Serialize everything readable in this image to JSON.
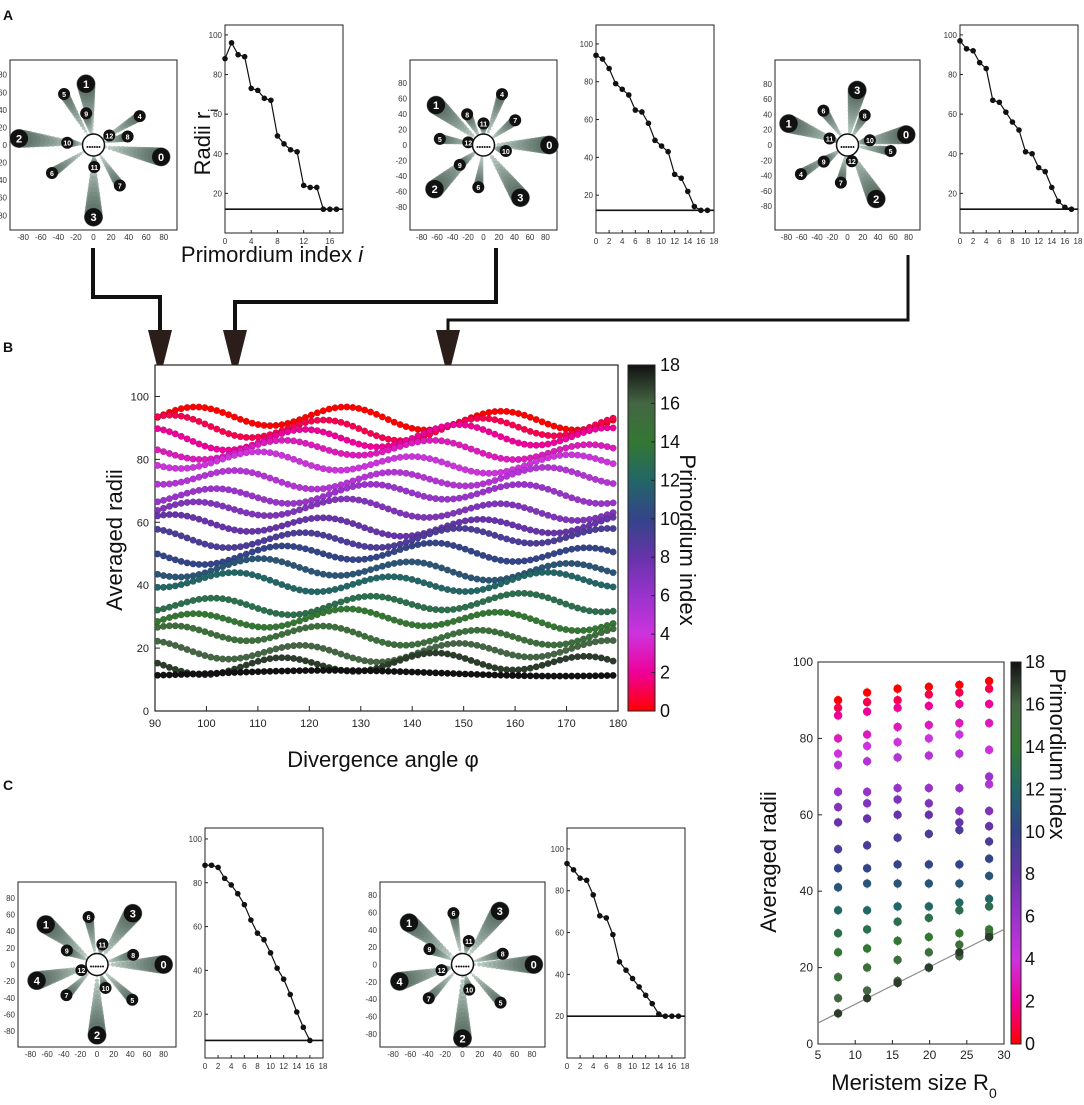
{
  "panels": {
    "a": "A",
    "b": "B",
    "c": "C"
  },
  "panel_a": {
    "radii_ylabel": "Radii r",
    "radii_ylabel_sub": "i",
    "radii_xlabel_prefix": "Primordium index ",
    "radii_xlabel_var": "i"
  },
  "chart_data": [
    {
      "id": "A1",
      "type": "line",
      "x": [
        0,
        1,
        2,
        3,
        4,
        5,
        6,
        7,
        8,
        9,
        10,
        11,
        12,
        13,
        14,
        15,
        16,
        17
      ],
      "y": [
        88,
        96,
        90,
        89,
        73,
        72,
        68,
        67,
        49,
        45,
        42,
        41,
        24,
        23,
        23,
        12,
        12,
        12
      ],
      "threshold": 12,
      "ylim": [
        0,
        105
      ],
      "xlim": [
        0,
        18
      ],
      "yticks": [
        20,
        40,
        60,
        80,
        100
      ],
      "xticks": [
        0,
        4,
        8,
        12,
        16
      ],
      "spiral": {
        "labels": [
          {
            "t": "0",
            "a": -10,
            "r": 78,
            "big": true
          },
          {
            "t": "1",
            "a": 97,
            "r": 70,
            "big": true
          },
          {
            "t": "2",
            "a": 175,
            "r": 85,
            "big": true
          },
          {
            "t": "3",
            "a": -90,
            "r": 82,
            "big": true
          },
          {
            "t": "4",
            "a": 32,
            "r": 62,
            "big": false
          },
          {
            "t": "5",
            "a": 120,
            "r": 67,
            "big": false
          },
          {
            "t": "6",
            "a": -146,
            "r": 57,
            "big": false
          },
          {
            "t": "7",
            "a": -57,
            "r": 55,
            "big": false
          },
          {
            "t": "8",
            "a": 14,
            "r": 40,
            "big": false
          },
          {
            "t": "9",
            "a": 103,
            "r": 37,
            "big": false
          },
          {
            "t": "10",
            "a": 175,
            "r": 30,
            "big": false
          },
          {
            "t": "11",
            "a": -88,
            "r": 25,
            "big": false
          },
          {
            "t": "12",
            "a": 31,
            "r": 21,
            "big": false
          }
        ],
        "ticks": [
          -80,
          -60,
          -40,
          -20,
          0,
          20,
          40,
          60,
          80
        ]
      }
    },
    {
      "id": "A2",
      "type": "line",
      "x": [
        0,
        1,
        2,
        3,
        4,
        5,
        6,
        7,
        8,
        9,
        10,
        11,
        12,
        13,
        14,
        15,
        16,
        17
      ],
      "y": [
        94,
        92,
        87,
        79,
        76,
        73,
        65,
        64,
        58,
        49,
        46,
        43,
        31,
        29,
        22,
        14,
        12,
        12
      ],
      "threshold": 12,
      "ylim": [
        0,
        110
      ],
      "xlim": [
        0,
        18
      ],
      "yticks": [
        20,
        40,
        60,
        80,
        100
      ],
      "xticks": [
        0,
        2,
        4,
        6,
        8,
        10,
        12,
        14,
        16,
        18
      ],
      "spiral": {
        "labels": [
          {
            "t": "0",
            "a": 0,
            "r": 85,
            "big": true
          },
          {
            "t": "1",
            "a": 140,
            "r": 80,
            "big": true
          },
          {
            "t": "2",
            "a": -138,
            "r": 85,
            "big": true
          },
          {
            "t": "3",
            "a": -55,
            "r": 83,
            "big": true
          },
          {
            "t": "4",
            "a": 70,
            "r": 70,
            "big": false
          },
          {
            "t": "5",
            "a": 172,
            "r": 57,
            "big": false
          },
          {
            "t": "6",
            "a": -97,
            "r": 55,
            "big": false
          },
          {
            "t": "7",
            "a": 38,
            "r": 52,
            "big": false
          },
          {
            "t": "8",
            "a": 118,
            "r": 45,
            "big": false
          },
          {
            "t": "9",
            "a": -140,
            "r": 40,
            "big": false
          },
          {
            "t": "10",
            "a": -15,
            "r": 30,
            "big": false
          },
          {
            "t": "11",
            "a": 90,
            "r": 28,
            "big": false
          },
          {
            "t": "12",
            "a": 170,
            "r": 20,
            "big": false
          }
        ],
        "ticks": [
          -80,
          -60,
          -40,
          -20,
          0,
          20,
          40,
          60,
          80
        ]
      }
    },
    {
      "id": "A3",
      "type": "line",
      "x": [
        0,
        1,
        2,
        3,
        4,
        5,
        6,
        7,
        8,
        9,
        10,
        11,
        12,
        13,
        14,
        15,
        16,
        17
      ],
      "y": [
        97,
        93,
        92,
        86,
        83,
        67,
        66,
        61,
        56,
        52,
        41,
        40,
        33,
        31,
        23,
        16,
        13,
        12
      ],
      "threshold": 12,
      "ylim": [
        0,
        105
      ],
      "xlim": [
        0,
        18
      ],
      "yticks": [
        20,
        40,
        60,
        80,
        100
      ],
      "xticks": [
        0,
        2,
        4,
        6,
        8,
        10,
        12,
        14,
        16,
        18
      ],
      "spiral": {
        "labels": [
          {
            "t": "0",
            "a": 10,
            "r": 78,
            "big": true
          },
          {
            "t": "1",
            "a": 160,
            "r": 82,
            "big": true
          },
          {
            "t": "2",
            "a": -62,
            "r": 80,
            "big": true
          },
          {
            "t": "3",
            "a": 80,
            "r": 73,
            "big": true
          },
          {
            "t": "4",
            "a": -148,
            "r": 72,
            "big": false
          },
          {
            "t": "5",
            "a": -8,
            "r": 57,
            "big": false
          },
          {
            "t": "6",
            "a": 125,
            "r": 55,
            "big": false
          },
          {
            "t": "7",
            "a": -100,
            "r": 50,
            "big": false
          },
          {
            "t": "8",
            "a": 60,
            "r": 45,
            "big": false
          },
          {
            "t": "9",
            "a": -145,
            "r": 38,
            "big": false
          },
          {
            "t": "10",
            "a": 12,
            "r": 30,
            "big": false
          },
          {
            "t": "11",
            "a": 160,
            "r": 25,
            "big": false
          },
          {
            "t": "12",
            "a": -75,
            "r": 22,
            "big": false
          }
        ],
        "ticks": [
          -80,
          -60,
          -40,
          -20,
          0,
          20,
          40,
          60,
          80
        ]
      }
    },
    {
      "id": "B",
      "type": "scatter",
      "title": "",
      "xlabel": "Divergence angle φ",
      "ylabel": "Averaged radii",
      "xlim": [
        90,
        180
      ],
      "ylim": [
        0,
        110
      ],
      "xticks": [
        90,
        100,
        110,
        120,
        130,
        140,
        150,
        160,
        170,
        180
      ],
      "yticks": [
        0,
        20,
        40,
        60,
        80,
        100
      ],
      "colorbar": {
        "label": "Primordium index",
        "ticks": [
          0,
          2,
          4,
          6,
          8,
          10,
          12,
          14,
          16,
          18
        ],
        "range": [
          0,
          18
        ]
      },
      "arrows_at": [
        91.5,
        105.5,
        146.5
      ],
      "series": [
        {
          "index": 0,
          "base": 93
        },
        {
          "index": 1,
          "base": 90
        },
        {
          "index": 2,
          "base": 87
        },
        {
          "index": 3,
          "base": 83
        },
        {
          "index": 4,
          "base": 79
        },
        {
          "index": 5,
          "base": 74
        },
        {
          "index": 6,
          "base": 69
        },
        {
          "index": 7,
          "base": 64
        },
        {
          "index": 8,
          "base": 59
        },
        {
          "index": 9,
          "base": 55
        },
        {
          "index": 10,
          "base": 50
        },
        {
          "index": 11,
          "base": 45
        },
        {
          "index": 12,
          "base": 41
        },
        {
          "index": 13,
          "base": 34
        },
        {
          "index": 14,
          "base": 29
        },
        {
          "index": 15,
          "base": 24
        },
        {
          "index": 16,
          "base": 19
        },
        {
          "index": 17,
          "base": 15
        },
        {
          "index": 18,
          "base": 12
        }
      ]
    },
    {
      "id": "C1",
      "type": "line",
      "x": [
        0,
        1,
        2,
        3,
        4,
        5,
        6,
        7,
        8,
        9,
        10,
        11,
        12,
        13,
        14,
        15,
        16
      ],
      "y": [
        88,
        88,
        87,
        82,
        79,
        75,
        70,
        63,
        57,
        54,
        48,
        41,
        36,
        29,
        21,
        14,
        8
      ],
      "threshold": 8,
      "ylim": [
        0,
        105
      ],
      "xlim": [
        0,
        18
      ],
      "yticks": [
        20,
        40,
        60,
        80,
        100
      ],
      "xticks": [
        0,
        2,
        4,
        6,
        8,
        10,
        12,
        14,
        16,
        18
      ],
      "spiral": {
        "labels": [
          {
            "t": "0",
            "a": 0,
            "r": 80,
            "big": true
          },
          {
            "t": "1",
            "a": 142,
            "r": 78,
            "big": true
          },
          {
            "t": "2",
            "a": -90,
            "r": 85,
            "big": true
          },
          {
            "t": "3",
            "a": 55,
            "r": 75,
            "big": true
          },
          {
            "t": "4",
            "a": -165,
            "r": 75,
            "big": true
          },
          {
            "t": "5",
            "a": -45,
            "r": 60,
            "big": false
          },
          {
            "t": "6",
            "a": 100,
            "r": 58,
            "big": false
          },
          {
            "t": "7",
            "a": -135,
            "r": 52,
            "big": false
          },
          {
            "t": "8",
            "a": 15,
            "r": 45,
            "big": false
          },
          {
            "t": "9",
            "a": 155,
            "r": 40,
            "big": false
          },
          {
            "t": "10",
            "a": -70,
            "r": 30,
            "big": false
          },
          {
            "t": "11",
            "a": 75,
            "r": 25,
            "big": false
          },
          {
            "t": "12",
            "a": -160,
            "r": 20,
            "big": false
          }
        ],
        "ticks": [
          -80,
          -60,
          -40,
          -20,
          0,
          20,
          40,
          60,
          80
        ]
      }
    },
    {
      "id": "C2",
      "type": "line",
      "x": [
        0,
        1,
        2,
        3,
        4,
        5,
        6,
        7,
        8,
        9,
        10,
        11,
        12,
        13,
        14,
        15,
        16,
        17
      ],
      "y": [
        93,
        90,
        86,
        85,
        78,
        68,
        67,
        59,
        46,
        42,
        38,
        34,
        30,
        26,
        21,
        20,
        20,
        20
      ],
      "threshold": 20,
      "ylim": [
        0,
        110
      ],
      "xlim": [
        0,
        18
      ],
      "yticks": [
        20,
        40,
        60,
        80,
        100
      ],
      "xticks": [
        0,
        2,
        4,
        6,
        8,
        10,
        12,
        14,
        16,
        18
      ],
      "spiral": {
        "labels": [
          {
            "t": "0",
            "a": 0,
            "r": 82,
            "big": true
          },
          {
            "t": "1",
            "a": 142,
            "r": 78,
            "big": true
          },
          {
            "t": "2",
            "a": -90,
            "r": 85,
            "big": true
          },
          {
            "t": "3",
            "a": 55,
            "r": 75,
            "big": true
          },
          {
            "t": "4",
            "a": -165,
            "r": 75,
            "big": true
          },
          {
            "t": "5",
            "a": -45,
            "r": 62,
            "big": false
          },
          {
            "t": "6",
            "a": 100,
            "r": 60,
            "big": false
          },
          {
            "t": "7",
            "a": -135,
            "r": 55,
            "big": false
          },
          {
            "t": "8",
            "a": 15,
            "r": 48,
            "big": false
          },
          {
            "t": "9",
            "a": 155,
            "r": 42,
            "big": false
          },
          {
            "t": "10",
            "a": -75,
            "r": 30,
            "big": false
          },
          {
            "t": "11",
            "a": 75,
            "r": 28,
            "big": false
          },
          {
            "t": "12",
            "a": -165,
            "r": 25,
            "big": false
          }
        ],
        "ticks": [
          -80,
          -60,
          -40,
          -20,
          0,
          20,
          40,
          60,
          80
        ]
      }
    },
    {
      "id": "C3",
      "type": "scatter",
      "xlabel": "Meristem size R",
      "xlabel_sub": "0",
      "ylabel": "Averaged radii",
      "xlim": [
        5,
        30
      ],
      "ylim": [
        0,
        100
      ],
      "xticks": [
        5,
        10,
        15,
        20,
        25,
        30
      ],
      "yticks": [
        0,
        20,
        40,
        60,
        80,
        100
      ],
      "colorbar": {
        "label": "Primordium index",
        "ticks": [
          0,
          2,
          4,
          6,
          8,
          10,
          12,
          14,
          16,
          18
        ],
        "range": [
          0,
          18
        ]
      },
      "x": [
        7.7,
        11.6,
        15.7,
        19.9,
        24,
        28
      ],
      "fit_line": {
        "x": [
          5,
          30
        ],
        "y": [
          5.5,
          30
        ]
      },
      "series": [
        {
          "index": 0,
          "values": [
            90,
            92,
            93,
            93.5,
            94,
            95
          ]
        },
        {
          "index": 1,
          "values": [
            88,
            89.5,
            90,
            91.5,
            92,
            93
          ]
        },
        {
          "index": 2,
          "values": [
            86,
            87,
            88,
            88.5,
            89,
            89
          ]
        },
        {
          "index": 3,
          "values": [
            80,
            81,
            83,
            83.5,
            84,
            84
          ]
        },
        {
          "index": 4,
          "values": [
            76,
            78,
            79,
            80,
            81,
            77
          ]
        },
        {
          "index": 5,
          "values": [
            73,
            74,
            75,
            75.5,
            76,
            68
          ]
        },
        {
          "index": 6,
          "values": [
            66,
            66,
            67,
            67,
            67,
            70
          ]
        },
        {
          "index": 7,
          "values": [
            62,
            63,
            64,
            63,
            61,
            61
          ]
        },
        {
          "index": 8,
          "values": [
            58,
            59,
            60,
            60,
            58,
            57
          ]
        },
        {
          "index": 9,
          "values": [
            51,
            52,
            54,
            55,
            56,
            53
          ]
        },
        {
          "index": 10,
          "values": [
            46,
            46,
            47,
            47,
            47,
            48.5
          ]
        },
        {
          "index": 11,
          "values": [
            41,
            42,
            42,
            42,
            42,
            44
          ]
        },
        {
          "index": 12,
          "values": [
            35,
            35,
            36,
            36,
            37,
            38
          ]
        },
        {
          "index": 13,
          "values": [
            29,
            30,
            32,
            33,
            35,
            36
          ]
        },
        {
          "index": 14,
          "values": [
            24,
            25,
            27,
            28,
            29,
            30
          ]
        },
        {
          "index": 15,
          "values": [
            17.5,
            20,
            22,
            24,
            26,
            29
          ]
        },
        {
          "index": 16,
          "values": [
            12,
            14,
            16.5,
            20,
            23,
            28
          ]
        },
        {
          "index": 17,
          "values": [
            8,
            12,
            16,
            20,
            24,
            28
          ]
        }
      ]
    }
  ]
}
